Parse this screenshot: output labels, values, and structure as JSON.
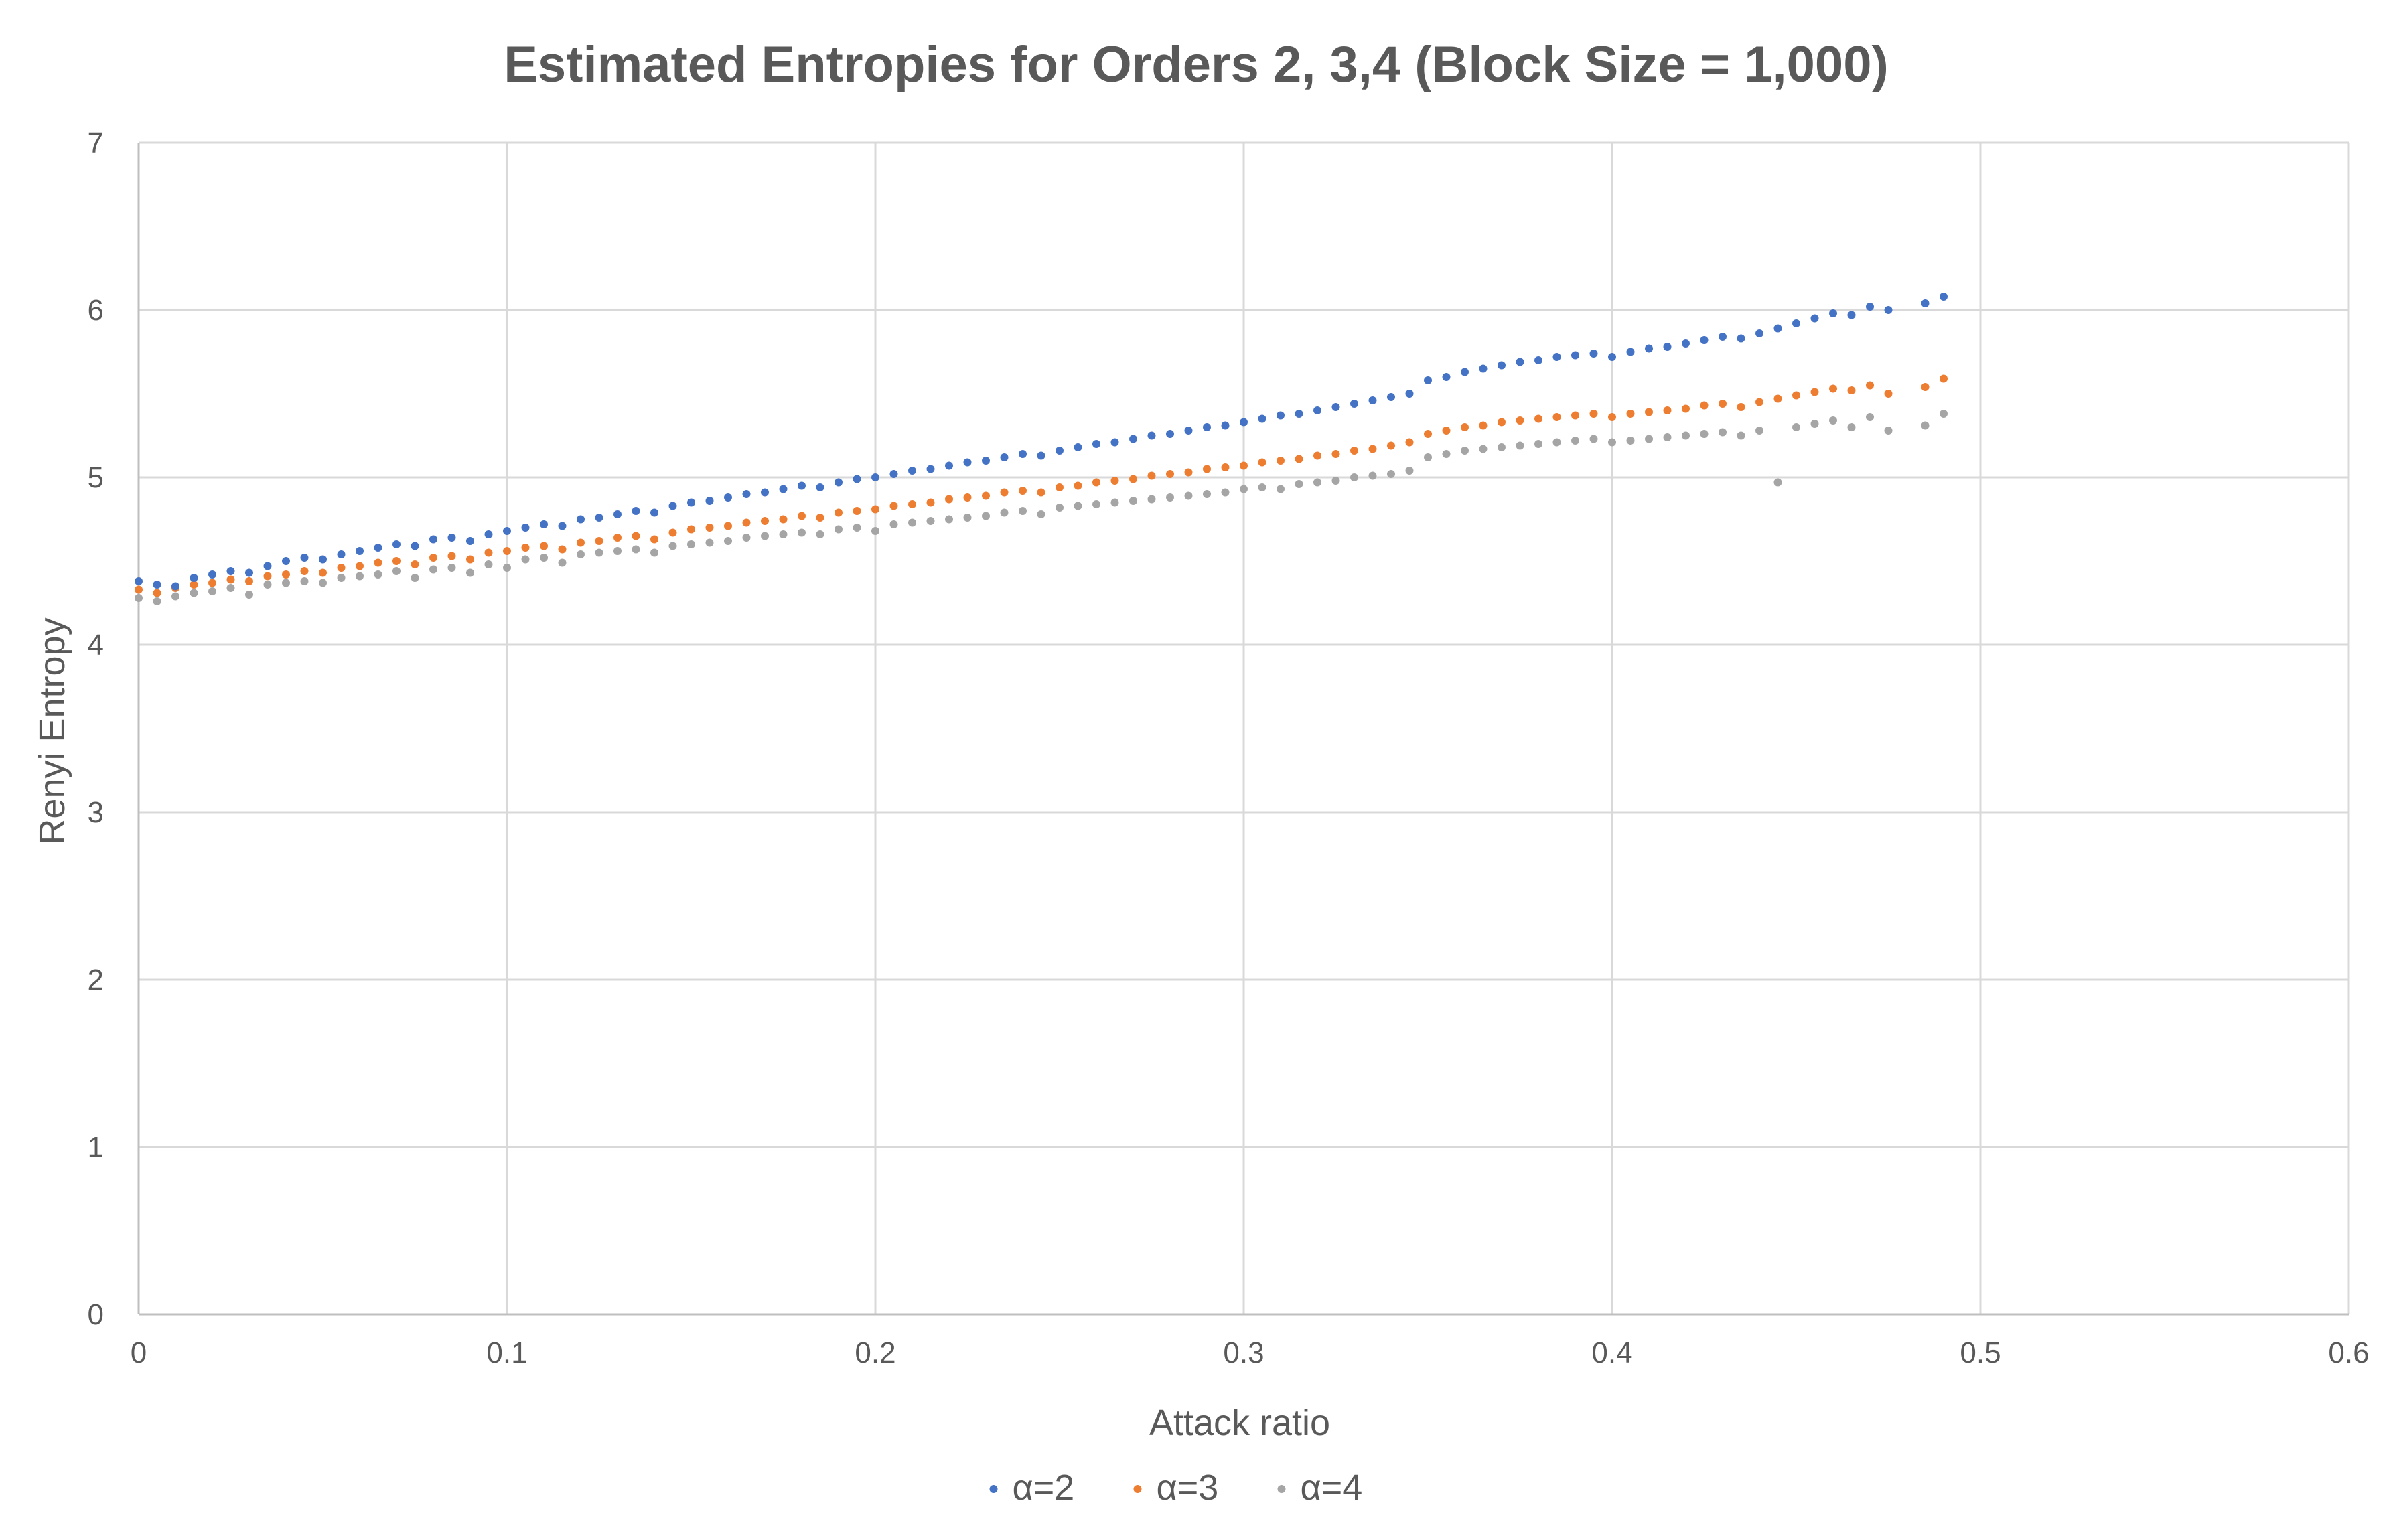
{
  "chart_data": {
    "type": "scatter",
    "title": "Estimated Entropies for Orders 2, 3,4 (Block Size = 1,000)",
    "xlabel": "Attack ratio",
    "ylabel": "Renyi Entropy",
    "xlim": [
      0,
      0.6
    ],
    "ylim": [
      0,
      7
    ],
    "x_ticks": [
      0,
      0.1,
      0.2,
      0.3,
      0.4,
      0.5,
      0.6
    ],
    "x_tick_labels": [
      "0",
      "0.1",
      "0.2",
      "0.3",
      "0.4",
      "0.5",
      "0.6"
    ],
    "y_ticks": [
      0,
      1,
      2,
      3,
      4,
      5,
      6,
      7
    ],
    "y_tick_labels": [
      "0",
      "1",
      "2",
      "3",
      "4",
      "5",
      "6",
      "7"
    ],
    "grid": true,
    "legend_position": "bottom",
    "series": [
      {
        "name": "α=2",
        "color": "#4472C4",
        "points": [
          [
            0.0,
            4.38
          ],
          [
            0.005,
            4.36
          ],
          [
            0.01,
            4.35
          ],
          [
            0.015,
            4.4
          ],
          [
            0.02,
            4.42
          ],
          [
            0.025,
            4.44
          ],
          [
            0.03,
            4.43
          ],
          [
            0.035,
            4.47
          ],
          [
            0.04,
            4.5
          ],
          [
            0.045,
            4.52
          ],
          [
            0.05,
            4.51
          ],
          [
            0.055,
            4.54
          ],
          [
            0.06,
            4.56
          ],
          [
            0.065,
            4.58
          ],
          [
            0.07,
            4.6
          ],
          [
            0.075,
            4.59
          ],
          [
            0.08,
            4.63
          ],
          [
            0.085,
            4.64
          ],
          [
            0.09,
            4.62
          ],
          [
            0.095,
            4.66
          ],
          [
            0.1,
            4.68
          ],
          [
            0.105,
            4.7
          ],
          [
            0.11,
            4.72
          ],
          [
            0.115,
            4.71
          ],
          [
            0.12,
            4.75
          ],
          [
            0.125,
            4.76
          ],
          [
            0.13,
            4.78
          ],
          [
            0.135,
            4.8
          ],
          [
            0.14,
            4.79
          ],
          [
            0.145,
            4.83
          ],
          [
            0.15,
            4.85
          ],
          [
            0.155,
            4.86
          ],
          [
            0.16,
            4.88
          ],
          [
            0.165,
            4.9
          ],
          [
            0.17,
            4.91
          ],
          [
            0.175,
            4.93
          ],
          [
            0.18,
            4.95
          ],
          [
            0.185,
            4.94
          ],
          [
            0.19,
            4.97
          ],
          [
            0.195,
            4.99
          ],
          [
            0.2,
            5.0
          ],
          [
            0.205,
            5.02
          ],
          [
            0.21,
            5.04
          ],
          [
            0.215,
            5.05
          ],
          [
            0.22,
            5.07
          ],
          [
            0.225,
            5.09
          ],
          [
            0.23,
            5.1
          ],
          [
            0.235,
            5.12
          ],
          [
            0.24,
            5.14
          ],
          [
            0.245,
            5.13
          ],
          [
            0.25,
            5.16
          ],
          [
            0.255,
            5.18
          ],
          [
            0.26,
            5.2
          ],
          [
            0.265,
            5.21
          ],
          [
            0.27,
            5.23
          ],
          [
            0.275,
            5.25
          ],
          [
            0.28,
            5.26
          ],
          [
            0.285,
            5.28
          ],
          [
            0.29,
            5.3
          ],
          [
            0.295,
            5.31
          ],
          [
            0.3,
            5.33
          ],
          [
            0.305,
            5.35
          ],
          [
            0.31,
            5.37
          ],
          [
            0.315,
            5.38
          ],
          [
            0.32,
            5.4
          ],
          [
            0.325,
            5.42
          ],
          [
            0.33,
            5.44
          ],
          [
            0.335,
            5.46
          ],
          [
            0.34,
            5.48
          ],
          [
            0.345,
            5.5
          ],
          [
            0.35,
            5.58
          ],
          [
            0.355,
            5.6
          ],
          [
            0.36,
            5.63
          ],
          [
            0.365,
            5.65
          ],
          [
            0.37,
            5.67
          ],
          [
            0.375,
            5.69
          ],
          [
            0.38,
            5.7
          ],
          [
            0.385,
            5.72
          ],
          [
            0.39,
            5.73
          ],
          [
            0.395,
            5.74
          ],
          [
            0.4,
            5.72
          ],
          [
            0.405,
            5.75
          ],
          [
            0.41,
            5.77
          ],
          [
            0.415,
            5.78
          ],
          [
            0.42,
            5.8
          ],
          [
            0.425,
            5.82
          ],
          [
            0.43,
            5.84
          ],
          [
            0.435,
            5.83
          ],
          [
            0.44,
            5.86
          ],
          [
            0.445,
            5.89
          ],
          [
            0.45,
            5.92
          ],
          [
            0.455,
            5.95
          ],
          [
            0.46,
            5.98
          ],
          [
            0.465,
            5.97
          ],
          [
            0.47,
            6.02
          ],
          [
            0.475,
            6.0
          ],
          [
            0.485,
            6.04
          ],
          [
            0.49,
            6.08
          ]
        ]
      },
      {
        "name": "α=3",
        "color": "#ED7D31",
        "points": [
          [
            0.0,
            4.33
          ],
          [
            0.005,
            4.31
          ],
          [
            0.01,
            4.34
          ],
          [
            0.015,
            4.36
          ],
          [
            0.02,
            4.37
          ],
          [
            0.025,
            4.39
          ],
          [
            0.03,
            4.38
          ],
          [
            0.035,
            4.41
          ],
          [
            0.04,
            4.42
          ],
          [
            0.045,
            4.44
          ],
          [
            0.05,
            4.43
          ],
          [
            0.055,
            4.46
          ],
          [
            0.06,
            4.47
          ],
          [
            0.065,
            4.49
          ],
          [
            0.07,
            4.5
          ],
          [
            0.075,
            4.48
          ],
          [
            0.08,
            4.52
          ],
          [
            0.085,
            4.53
          ],
          [
            0.09,
            4.51
          ],
          [
            0.095,
            4.55
          ],
          [
            0.1,
            4.56
          ],
          [
            0.105,
            4.58
          ],
          [
            0.11,
            4.59
          ],
          [
            0.115,
            4.57
          ],
          [
            0.12,
            4.61
          ],
          [
            0.125,
            4.62
          ],
          [
            0.13,
            4.64
          ],
          [
            0.135,
            4.65
          ],
          [
            0.14,
            4.63
          ],
          [
            0.145,
            4.67
          ],
          [
            0.15,
            4.69
          ],
          [
            0.155,
            4.7
          ],
          [
            0.16,
            4.71
          ],
          [
            0.165,
            4.73
          ],
          [
            0.17,
            4.74
          ],
          [
            0.175,
            4.75
          ],
          [
            0.18,
            4.77
          ],
          [
            0.185,
            4.76
          ],
          [
            0.19,
            4.79
          ],
          [
            0.195,
            4.8
          ],
          [
            0.2,
            4.81
          ],
          [
            0.205,
            4.83
          ],
          [
            0.21,
            4.84
          ],
          [
            0.215,
            4.85
          ],
          [
            0.22,
            4.87
          ],
          [
            0.225,
            4.88
          ],
          [
            0.23,
            4.89
          ],
          [
            0.235,
            4.91
          ],
          [
            0.24,
            4.92
          ],
          [
            0.245,
            4.91
          ],
          [
            0.25,
            4.94
          ],
          [
            0.255,
            4.95
          ],
          [
            0.26,
            4.97
          ],
          [
            0.265,
            4.98
          ],
          [
            0.27,
            4.99
          ],
          [
            0.275,
            5.01
          ],
          [
            0.28,
            5.02
          ],
          [
            0.285,
            5.03
          ],
          [
            0.29,
            5.05
          ],
          [
            0.295,
            5.06
          ],
          [
            0.3,
            5.07
          ],
          [
            0.305,
            5.09
          ],
          [
            0.31,
            5.1
          ],
          [
            0.315,
            5.11
          ],
          [
            0.32,
            5.13
          ],
          [
            0.325,
            5.14
          ],
          [
            0.33,
            5.16
          ],
          [
            0.335,
            5.17
          ],
          [
            0.34,
            5.19
          ],
          [
            0.345,
            5.21
          ],
          [
            0.35,
            5.26
          ],
          [
            0.355,
            5.28
          ],
          [
            0.36,
            5.3
          ],
          [
            0.365,
            5.31
          ],
          [
            0.37,
            5.33
          ],
          [
            0.375,
            5.34
          ],
          [
            0.38,
            5.35
          ],
          [
            0.385,
            5.36
          ],
          [
            0.39,
            5.37
          ],
          [
            0.395,
            5.38
          ],
          [
            0.4,
            5.36
          ],
          [
            0.405,
            5.38
          ],
          [
            0.41,
            5.39
          ],
          [
            0.415,
            5.4
          ],
          [
            0.42,
            5.41
          ],
          [
            0.425,
            5.43
          ],
          [
            0.43,
            5.44
          ],
          [
            0.435,
            5.42
          ],
          [
            0.44,
            5.45
          ],
          [
            0.445,
            5.47
          ],
          [
            0.45,
            5.49
          ],
          [
            0.455,
            5.51
          ],
          [
            0.46,
            5.53
          ],
          [
            0.465,
            5.52
          ],
          [
            0.47,
            5.55
          ],
          [
            0.475,
            5.5
          ],
          [
            0.485,
            5.54
          ],
          [
            0.49,
            5.59
          ]
        ]
      },
      {
        "name": "α=4",
        "color": "#A5A5A5",
        "points": [
          [
            0.0,
            4.28
          ],
          [
            0.005,
            4.26
          ],
          [
            0.01,
            4.29
          ],
          [
            0.015,
            4.31
          ],
          [
            0.02,
            4.32
          ],
          [
            0.025,
            4.34
          ],
          [
            0.03,
            4.3
          ],
          [
            0.035,
            4.36
          ],
          [
            0.04,
            4.37
          ],
          [
            0.045,
            4.38
          ],
          [
            0.05,
            4.37
          ],
          [
            0.055,
            4.4
          ],
          [
            0.06,
            4.41
          ],
          [
            0.065,
            4.42
          ],
          [
            0.07,
            4.44
          ],
          [
            0.075,
            4.4
          ],
          [
            0.08,
            4.45
          ],
          [
            0.085,
            4.46
          ],
          [
            0.09,
            4.43
          ],
          [
            0.095,
            4.48
          ],
          [
            0.1,
            4.46
          ],
          [
            0.105,
            4.51
          ],
          [
            0.11,
            4.52
          ],
          [
            0.115,
            4.49
          ],
          [
            0.12,
            4.54
          ],
          [
            0.125,
            4.55
          ],
          [
            0.13,
            4.56
          ],
          [
            0.135,
            4.57
          ],
          [
            0.14,
            4.55
          ],
          [
            0.145,
            4.59
          ],
          [
            0.15,
            4.6
          ],
          [
            0.155,
            4.61
          ],
          [
            0.16,
            4.62
          ],
          [
            0.165,
            4.64
          ],
          [
            0.17,
            4.65
          ],
          [
            0.175,
            4.66
          ],
          [
            0.18,
            4.67
          ],
          [
            0.185,
            4.66
          ],
          [
            0.19,
            4.69
          ],
          [
            0.195,
            4.7
          ],
          [
            0.2,
            4.68
          ],
          [
            0.205,
            4.72
          ],
          [
            0.21,
            4.73
          ],
          [
            0.215,
            4.74
          ],
          [
            0.22,
            4.75
          ],
          [
            0.225,
            4.76
          ],
          [
            0.23,
            4.77
          ],
          [
            0.235,
            4.79
          ],
          [
            0.24,
            4.8
          ],
          [
            0.245,
            4.78
          ],
          [
            0.25,
            4.82
          ],
          [
            0.255,
            4.83
          ],
          [
            0.26,
            4.84
          ],
          [
            0.265,
            4.85
          ],
          [
            0.27,
            4.86
          ],
          [
            0.275,
            4.87
          ],
          [
            0.28,
            4.88
          ],
          [
            0.285,
            4.89
          ],
          [
            0.29,
            4.9
          ],
          [
            0.295,
            4.91
          ],
          [
            0.3,
            4.93
          ],
          [
            0.305,
            4.94
          ],
          [
            0.31,
            4.93
          ],
          [
            0.315,
            4.96
          ],
          [
            0.32,
            4.97
          ],
          [
            0.325,
            4.98
          ],
          [
            0.33,
            5.0
          ],
          [
            0.335,
            5.01
          ],
          [
            0.34,
            5.02
          ],
          [
            0.345,
            5.04
          ],
          [
            0.35,
            5.12
          ],
          [
            0.355,
            5.14
          ],
          [
            0.36,
            5.16
          ],
          [
            0.365,
            5.17
          ],
          [
            0.37,
            5.18
          ],
          [
            0.375,
            5.19
          ],
          [
            0.38,
            5.2
          ],
          [
            0.385,
            5.21
          ],
          [
            0.39,
            5.22
          ],
          [
            0.395,
            5.23
          ],
          [
            0.4,
            5.21
          ],
          [
            0.405,
            5.22
          ],
          [
            0.41,
            5.23
          ],
          [
            0.415,
            5.24
          ],
          [
            0.42,
            5.25
          ],
          [
            0.425,
            5.26
          ],
          [
            0.43,
            5.27
          ],
          [
            0.435,
            5.25
          ],
          [
            0.44,
            5.28
          ],
          [
            0.445,
            4.97
          ],
          [
            0.45,
            5.3
          ],
          [
            0.455,
            5.32
          ],
          [
            0.46,
            5.34
          ],
          [
            0.465,
            5.3
          ],
          [
            0.47,
            5.36
          ],
          [
            0.475,
            5.28
          ],
          [
            0.485,
            5.31
          ],
          [
            0.49,
            5.38
          ]
        ]
      }
    ]
  }
}
